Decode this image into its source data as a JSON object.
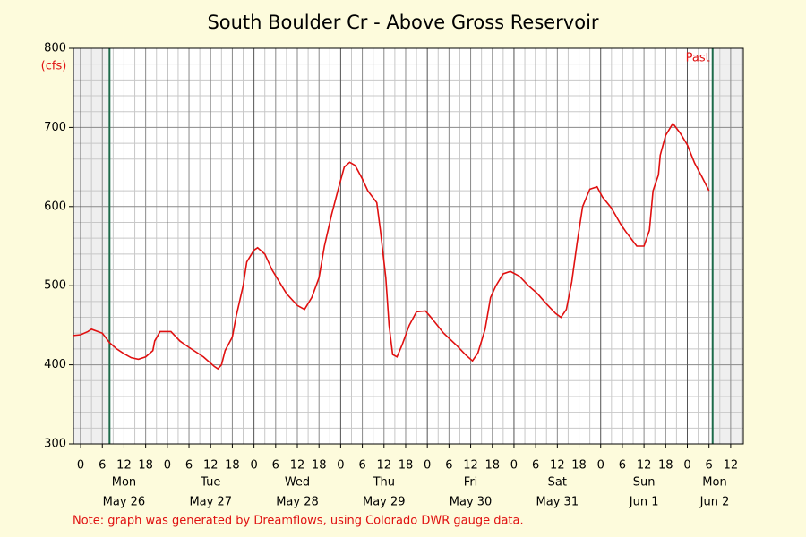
{
  "chart_data": {
    "type": "line",
    "title": "South Boulder Cr - Above Gross Reservoir",
    "y_label": "(cfs)",
    "annotation": "Past",
    "note": "Note: graph was generated by Dreamflows, using Colorado DWR gauge data.",
    "xlim": [
      -2,
      183.5
    ],
    "ylim": [
      300,
      800
    ],
    "yticks": [
      300,
      400,
      500,
      600,
      700,
      800
    ],
    "xticks": [
      {
        "value": 0,
        "label": "0"
      },
      {
        "value": 6,
        "label": "6"
      },
      {
        "value": 12,
        "label": "12"
      },
      {
        "value": 18,
        "label": "18"
      },
      {
        "value": 24,
        "label": "0"
      },
      {
        "value": 30,
        "label": "6"
      },
      {
        "value": 36,
        "label": "12"
      },
      {
        "value": 42,
        "label": "18"
      },
      {
        "value": 48,
        "label": "0"
      },
      {
        "value": 54,
        "label": "6"
      },
      {
        "value": 60,
        "label": "12"
      },
      {
        "value": 66,
        "label": "18"
      },
      {
        "value": 72,
        "label": "0"
      },
      {
        "value": 78,
        "label": "6"
      },
      {
        "value": 84,
        "label": "12"
      },
      {
        "value": 90,
        "label": "18"
      },
      {
        "value": 96,
        "label": "0"
      },
      {
        "value": 102,
        "label": "6"
      },
      {
        "value": 108,
        "label": "12"
      },
      {
        "value": 114,
        "label": "18"
      },
      {
        "value": 120,
        "label": "0"
      },
      {
        "value": 126,
        "label": "6"
      },
      {
        "value": 132,
        "label": "12"
      },
      {
        "value": 138,
        "label": "18"
      },
      {
        "value": 144,
        "label": "0"
      },
      {
        "value": 150,
        "label": "6"
      },
      {
        "value": 156,
        "label": "12"
      },
      {
        "value": 162,
        "label": "18"
      },
      {
        "value": 168,
        "label": "0"
      },
      {
        "value": 174,
        "label": "6"
      },
      {
        "value": 180,
        "label": "12"
      }
    ],
    "day_labels": [
      {
        "value": 12,
        "weekday": "Mon",
        "date": "May 26"
      },
      {
        "value": 36,
        "weekday": "Tue",
        "date": "May 27"
      },
      {
        "value": 60,
        "weekday": "Wed",
        "date": "May 28"
      },
      {
        "value": 84,
        "weekday": "Thu",
        "date": "May 29"
      },
      {
        "value": 108,
        "weekday": "Fri",
        "date": "May 30"
      },
      {
        "value": 132,
        "weekday": "Sat",
        "date": "May 31"
      },
      {
        "value": 156,
        "weekday": "Sun",
        "date": "Jun 1"
      },
      {
        "value": 180,
        "weekday": "Mon",
        "date": "Jun 2"
      }
    ],
    "window": [
      8,
      175
    ],
    "grid": true,
    "color": "#e01010",
    "x": [
      -2,
      0,
      2,
      3,
      6,
      8,
      10,
      12,
      14,
      16,
      18,
      20,
      20.5,
      22,
      25,
      27.5,
      30,
      34,
      37,
      38,
      39,
      40,
      42,
      43,
      45,
      46,
      48,
      49,
      51,
      53,
      55,
      57,
      60,
      62,
      64,
      66,
      67.5,
      69.5,
      71.5,
      73,
      74.5,
      76,
      78,
      79.5,
      82,
      83,
      84.5,
      85.4,
      86.4,
      87.6,
      89,
      91,
      93,
      95.5,
      97,
      100.5,
      104,
      106.5,
      108.5,
      110,
      112,
      113.5,
      115,
      117,
      119,
      121.5,
      124,
      126.5,
      129,
      131.5,
      133,
      134.5,
      136,
      137.5,
      139,
      141,
      143,
      144.5,
      147,
      149.5,
      151,
      154,
      156,
      157.5,
      158.5,
      160,
      160.5,
      162,
      164,
      166,
      168,
      170,
      172,
      174
    ],
    "values": [
      437,
      438,
      442,
      445,
      440,
      428,
      420,
      414,
      409,
      407,
      410,
      418,
      430,
      442,
      442,
      430,
      422,
      410,
      398,
      395,
      400,
      418,
      435,
      460,
      500,
      530,
      545,
      548,
      540,
      520,
      505,
      490,
      475,
      470,
      485,
      510,
      550,
      590,
      625,
      650,
      656,
      652,
      635,
      620,
      605,
      570,
      510,
      450,
      413,
      410,
      425,
      450,
      467,
      468,
      460,
      440,
      425,
      413,
      405,
      415,
      445,
      485,
      500,
      515,
      518,
      512,
      500,
      490,
      477,
      465,
      460,
      470,
      505,
      555,
      600,
      622,
      625,
      612,
      598,
      578,
      568,
      550,
      550,
      570,
      620,
      640,
      665,
      690,
      705,
      693,
      678,
      655,
      638,
      620
    ]
  }
}
